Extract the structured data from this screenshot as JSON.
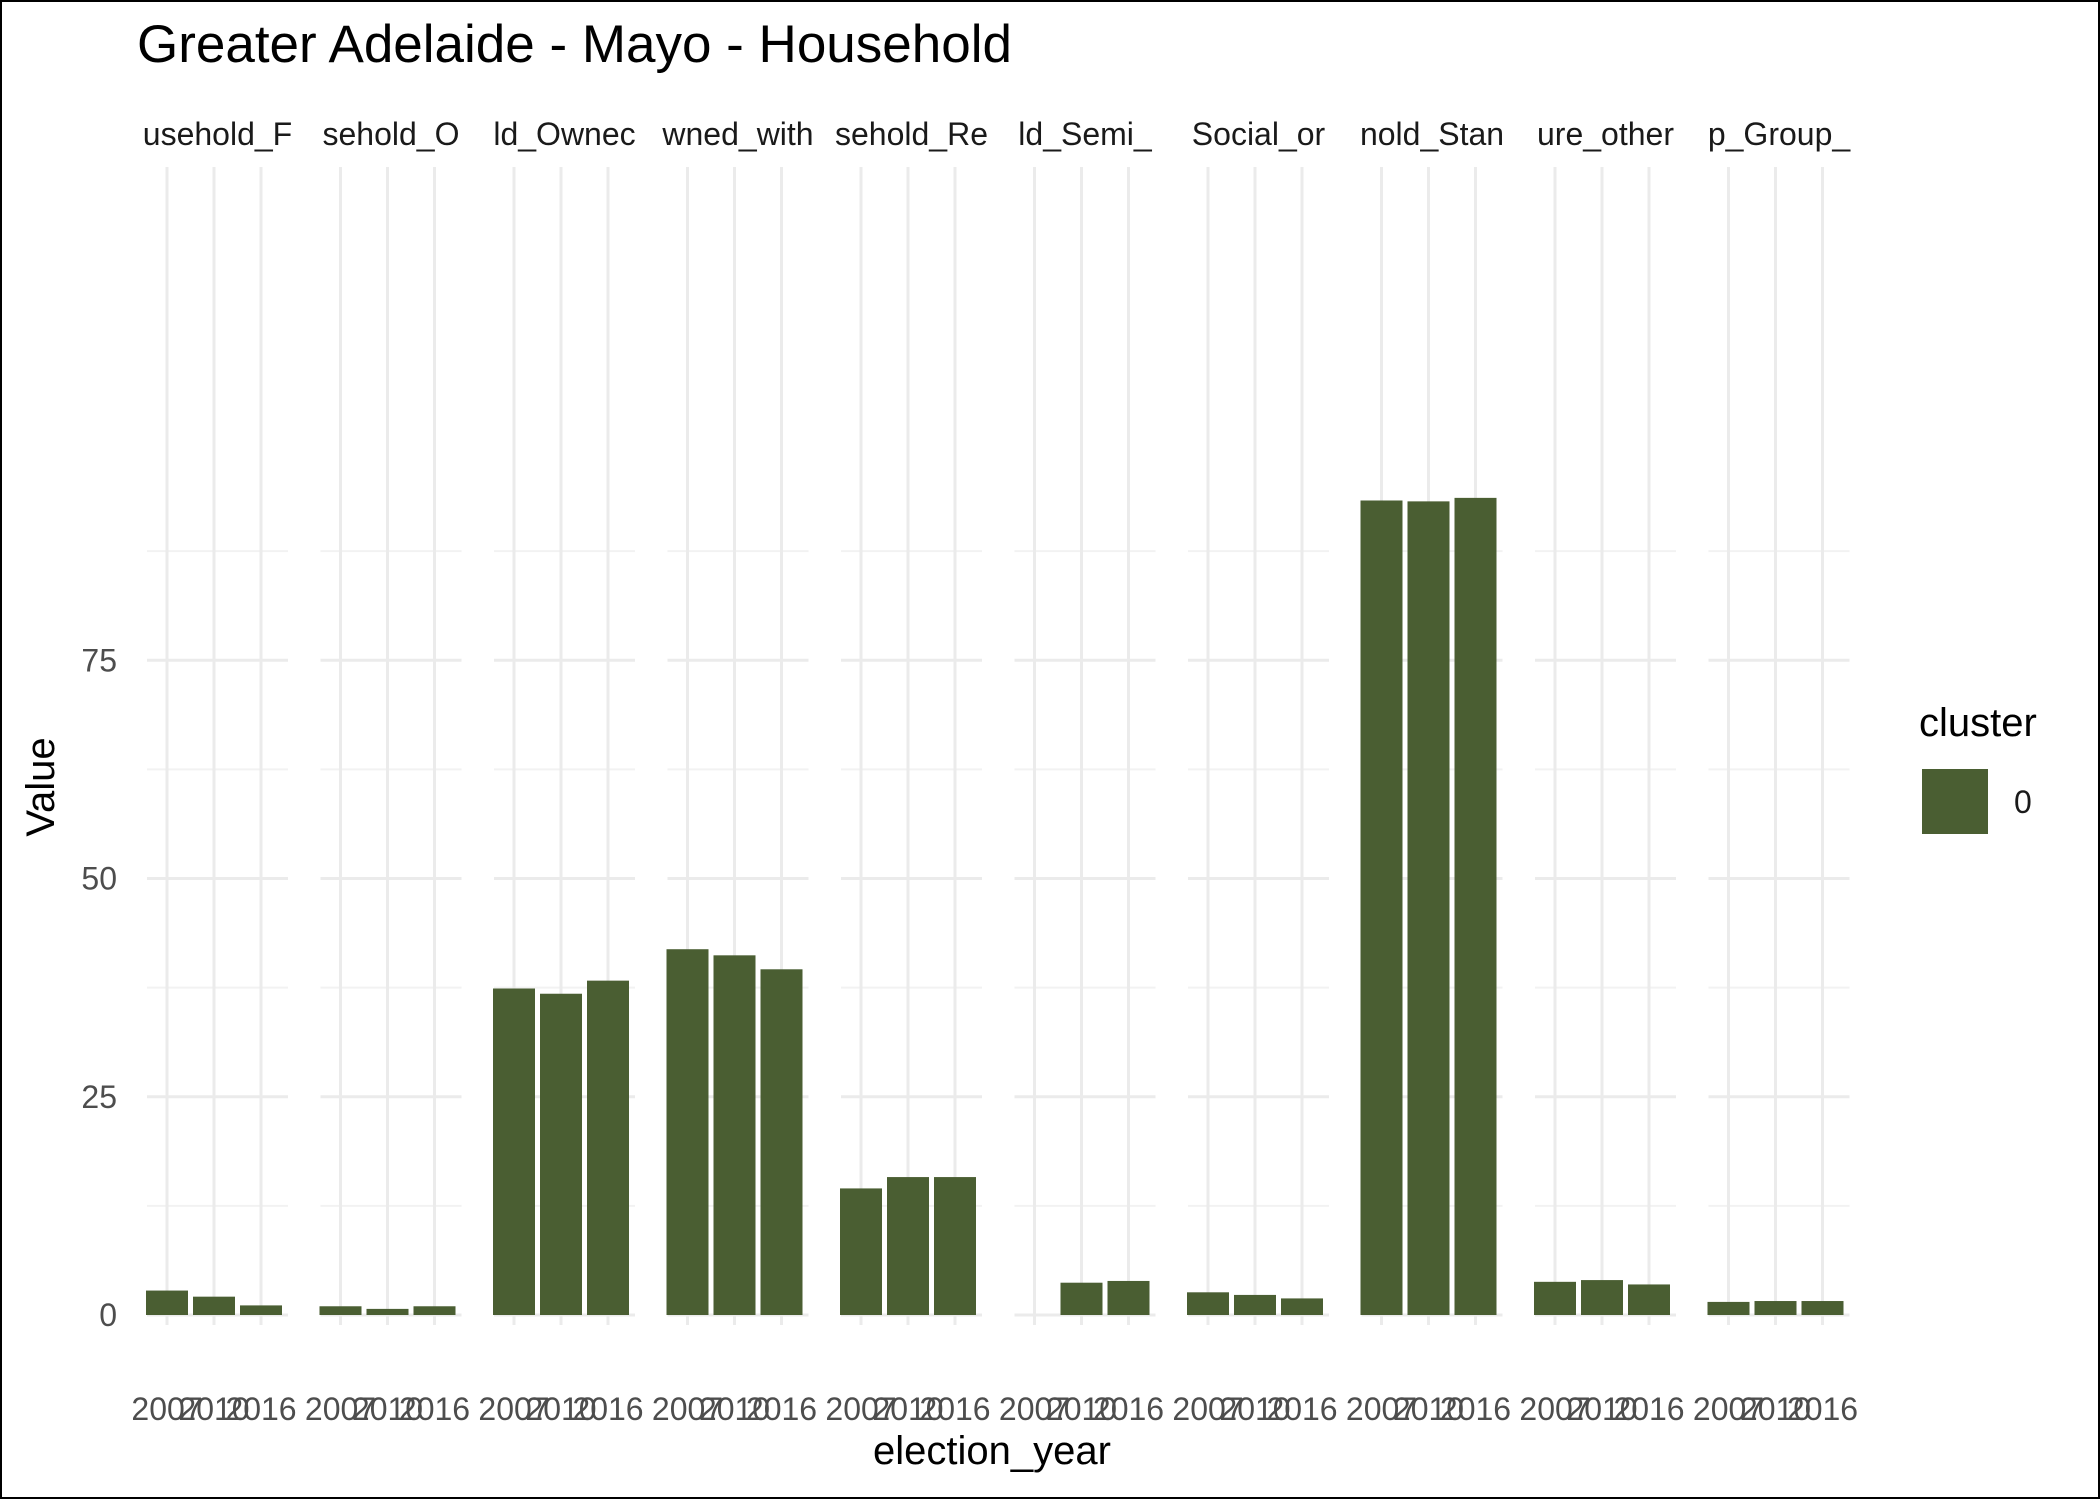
{
  "chart_data": {
    "type": "bar",
    "title": "Greater Adelaide - Mayo - Household",
    "xlabel": "election_year",
    "ylabel": "Value",
    "ylim": [
      0,
      100
    ],
    "y_ticks": [
      0,
      25,
      50,
      75
    ],
    "grid": true,
    "legend": {
      "title": "cluster",
      "placement": "right",
      "entries": [
        {
          "label": "0",
          "color": "#4a5e32"
        }
      ]
    },
    "bar_color": "#4a5e32",
    "x_tick_labels": [
      "2007",
      "2010",
      "2016"
    ],
    "facets": [
      {
        "label": "usehold_F",
        "values": [
          2.8,
          2.1,
          1.1
        ]
      },
      {
        "label": "sehold_O",
        "values": [
          1.0,
          0.7,
          1.0
        ]
      },
      {
        "label": "ld_Ownec",
        "values": [
          37.4,
          36.8,
          38.3
        ]
      },
      {
        "label": "wned_with",
        "values": [
          41.9,
          41.2,
          39.6
        ]
      },
      {
        "label": "sehold_Re",
        "values": [
          14.5,
          15.8,
          15.8
        ]
      },
      {
        "label": "ld_Semi_",
        "values": [
          null,
          3.7,
          3.9
        ]
      },
      {
        "label": "Social_or",
        "values": [
          2.6,
          2.3,
          1.9
        ]
      },
      {
        "label": "nold_Stan",
        "values": [
          93.3,
          93.2,
          93.6
        ]
      },
      {
        "label": "ure_other",
        "values": [
          3.8,
          4.0,
          3.5
        ]
      },
      {
        "label": "p_Group_",
        "values": [
          1.5,
          1.6,
          1.6
        ]
      }
    ]
  }
}
